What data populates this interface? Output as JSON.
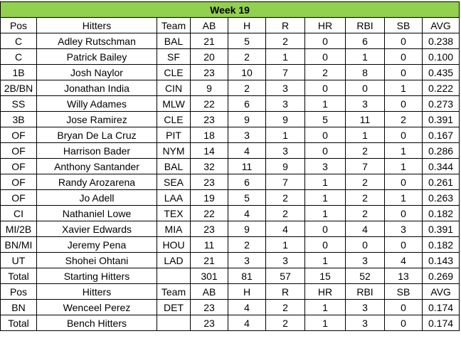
{
  "title": "Week 19",
  "sections": [
    {
      "header": [
        "Pos",
        "Hitters",
        "Team",
        "AB",
        "H",
        "R",
        "HR",
        "RBI",
        "SB",
        "AVG"
      ],
      "rows": [
        [
          "C",
          "Adley Rutschman",
          "BAL",
          "21",
          "5",
          "2",
          "0",
          "6",
          "0",
          "0.238"
        ],
        [
          "C",
          "Patrick Bailey",
          "SF",
          "20",
          "2",
          "1",
          "0",
          "1",
          "0",
          "0.100"
        ],
        [
          "1B",
          "Josh Naylor",
          "CLE",
          "23",
          "10",
          "7",
          "2",
          "8",
          "0",
          "0.435"
        ],
        [
          "2B/BN",
          "Jonathan India",
          "CIN",
          "9",
          "2",
          "3",
          "0",
          "0",
          "1",
          "0.222"
        ],
        [
          "SS",
          "Willy Adames",
          "MLW",
          "22",
          "6",
          "3",
          "1",
          "3",
          "0",
          "0.273"
        ],
        [
          "3B",
          "Jose Ramirez",
          "CLE",
          "23",
          "9",
          "9",
          "5",
          "11",
          "2",
          "0.391"
        ],
        [
          "OF",
          "Bryan De La Cruz",
          "PIT",
          "18",
          "3",
          "1",
          "0",
          "1",
          "0",
          "0.167"
        ],
        [
          "OF",
          "Harrison Bader",
          "NYM",
          "14",
          "4",
          "3",
          "0",
          "2",
          "1",
          "0.286"
        ],
        [
          "OF",
          "Anthony Santander",
          "BAL",
          "32",
          "11",
          "9",
          "3",
          "7",
          "1",
          "0.344"
        ],
        [
          "OF",
          "Randy Arozarena",
          "SEA",
          "23",
          "6",
          "7",
          "1",
          "2",
          "0",
          "0.261"
        ],
        [
          "OF",
          "Jo Adell",
          "LAA",
          "19",
          "5",
          "2",
          "1",
          "2",
          "1",
          "0.263"
        ],
        [
          "CI",
          "Nathaniel Lowe",
          "TEX",
          "22",
          "4",
          "2",
          "1",
          "2",
          "0",
          "0.182"
        ],
        [
          "MI/2B",
          "Xavier Edwards",
          "MIA",
          "23",
          "9",
          "4",
          "0",
          "4",
          "3",
          "0.391"
        ],
        [
          "BN/MI",
          "Jeremy Pena",
          "HOU",
          "11",
          "2",
          "1",
          "0",
          "0",
          "0",
          "0.182"
        ],
        [
          "UT",
          "Shohei Ohtani",
          "LAD",
          "21",
          "3",
          "3",
          "1",
          "3",
          "4",
          "0.143"
        ],
        [
          "Total",
          "Starting Hitters",
          null,
          "301",
          "81",
          "57",
          "15",
          "52",
          "13",
          "0.269"
        ]
      ]
    },
    {
      "header": [
        "Pos",
        "Hitters",
        "Team",
        "AB",
        "H",
        "R",
        "HR",
        "RBI",
        "SB",
        "AVG"
      ],
      "rows": [
        [
          "BN",
          "Wenceel Perez",
          "DET",
          "23",
          "4",
          "2",
          "1",
          "3",
          "0",
          "0.174"
        ],
        [
          "Total",
          "Bench Hitters",
          null,
          "23",
          "4",
          "2",
          "1",
          "3",
          "0",
          "0.174"
        ]
      ]
    }
  ]
}
